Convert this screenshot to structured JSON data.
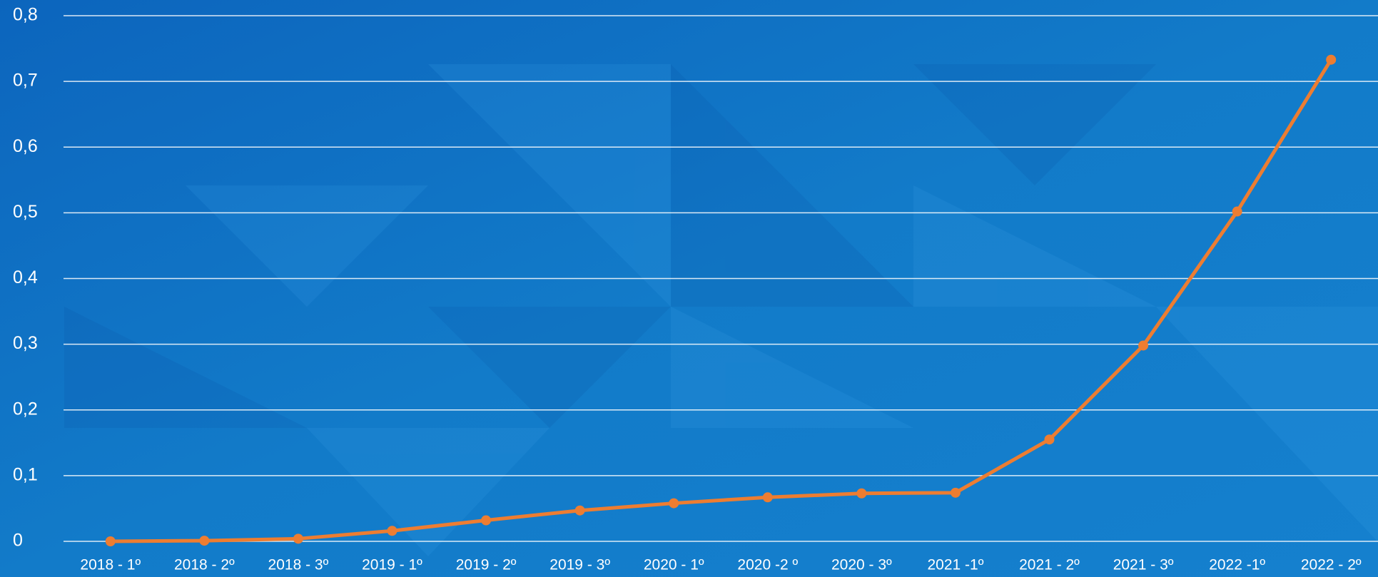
{
  "chart_data": {
    "type": "line",
    "categories": [
      "2018 - 1º",
      "2018 - 2º",
      "2018 - 3º",
      "2019 - 1º",
      "2019 - 2º",
      "2019 - 3º",
      "2020 - 1º",
      "2020 -2 º",
      "2020 - 3º",
      "2021 -1º",
      "2021 - 2º",
      "2021 - 3º",
      "2022 -1º",
      "2022 - 2º"
    ],
    "series": [
      {
        "color": "#ed7d31",
        "values": [
          0.0,
          0.001,
          0.004,
          0.016,
          0.032,
          0.047,
          0.058,
          0.067,
          0.073,
          0.074,
          0.155,
          0.298,
          0.502,
          0.733
        ]
      }
    ],
    "ylim": [
      0,
      0.8
    ],
    "yticks": [
      0,
      {
        "value": 0.1,
        "label": "0,1"
      },
      {
        "value": 0.2,
        "label": "0,2"
      },
      {
        "value": 0.3,
        "label": "0,3"
      },
      {
        "value": 0.4,
        "label": "0,4"
      },
      {
        "value": 0.5,
        "label": "0,5"
      },
      {
        "value": 0.6,
        "label": "0,6"
      },
      {
        "value": 0.7,
        "label": "0,7"
      },
      {
        "value": 0.8,
        "label": "0,8"
      }
    ],
    "grid": true
  }
}
